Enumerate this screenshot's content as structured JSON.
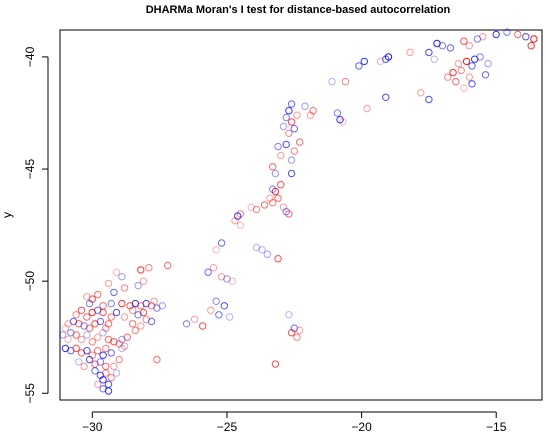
{
  "chart_data": {
    "type": "scatter",
    "title": "DHARMa Moran's I test for distance-based autocorrelation",
    "xlabel": "",
    "ylabel": "y",
    "xlim": [
      -31.2,
      -13.3
    ],
    "ylim": [
      -55.3,
      -38.8
    ],
    "x_ticks": [
      -30,
      -25,
      -20,
      -15
    ],
    "x_tick_labels": [
      "−30",
      "−25",
      "−20",
      "−15"
    ],
    "y_ticks": [
      -55,
      -50,
      -45,
      -40
    ],
    "y_tick_labels": [
      "−55",
      "−50",
      "−45",
      "−40"
    ],
    "grid": false,
    "legend": "none",
    "point_shape": "open circle",
    "colors": {
      "red": "#ff0000",
      "blue": "#0000ff",
      "axis": "#000000",
      "background": "#ffffff"
    },
    "points": [
      {
        "x": -13.6,
        "y": -39.2,
        "c": "red",
        "a": 0.9
      },
      {
        "x": -13.9,
        "y": -39.1,
        "c": "blue",
        "a": 0.7
      },
      {
        "x": -14.2,
        "y": -39.0,
        "c": "red",
        "a": 0.6
      },
      {
        "x": -13.7,
        "y": -39.5,
        "c": "red",
        "a": 0.8
      },
      {
        "x": -14.6,
        "y": -38.9,
        "c": "blue",
        "a": 0.5
      },
      {
        "x": -15.0,
        "y": -39.0,
        "c": "blue",
        "a": 0.8
      },
      {
        "x": -15.5,
        "y": -39.1,
        "c": "red",
        "a": 0.4
      },
      {
        "x": -15.7,
        "y": -39.2,
        "c": "blue",
        "a": 0.5
      },
      {
        "x": -16.2,
        "y": -39.3,
        "c": "red",
        "a": 0.7
      },
      {
        "x": -16.0,
        "y": -39.5,
        "c": "red",
        "a": 0.4
      },
      {
        "x": -15.8,
        "y": -40.1,
        "c": "blue",
        "a": 0.8
      },
      {
        "x": -16.1,
        "y": -40.2,
        "c": "red",
        "a": 0.9
      },
      {
        "x": -15.9,
        "y": -40.4,
        "c": "blue",
        "a": 0.6
      },
      {
        "x": -16.3,
        "y": -40.6,
        "c": "red",
        "a": 0.5
      },
      {
        "x": -16.0,
        "y": -40.9,
        "c": "red",
        "a": 0.4
      },
      {
        "x": -15.9,
        "y": -41.2,
        "c": "blue",
        "a": 0.7
      },
      {
        "x": -16.2,
        "y": -41.4,
        "c": "red",
        "a": 0.3
      },
      {
        "x": -16.6,
        "y": -40.7,
        "c": "red",
        "a": 0.8
      },
      {
        "x": -16.8,
        "y": -40.9,
        "c": "red",
        "a": 0.5
      },
      {
        "x": -16.5,
        "y": -41.1,
        "c": "red",
        "a": 0.6
      },
      {
        "x": -16.4,
        "y": -40.3,
        "c": "red",
        "a": 0.4
      },
      {
        "x": -15.6,
        "y": -40.0,
        "c": "blue",
        "a": 0.5
      },
      {
        "x": -15.3,
        "y": -40.3,
        "c": "blue",
        "a": 0.4
      },
      {
        "x": -15.4,
        "y": -40.8,
        "c": "blue",
        "a": 0.6
      },
      {
        "x": -16.7,
        "y": -39.6,
        "c": "blue",
        "a": 0.6
      },
      {
        "x": -17.0,
        "y": -39.5,
        "c": "blue",
        "a": 0.5
      },
      {
        "x": -17.2,
        "y": -39.4,
        "c": "blue",
        "a": 0.9
      },
      {
        "x": -17.5,
        "y": -39.8,
        "c": "blue",
        "a": 0.7
      },
      {
        "x": -17.3,
        "y": -40.1,
        "c": "blue",
        "a": 0.3
      },
      {
        "x": -18.2,
        "y": -39.8,
        "c": "red",
        "a": 0.4
      },
      {
        "x": -19.0,
        "y": -40.0,
        "c": "blue",
        "a": 0.9
      },
      {
        "x": -19.1,
        "y": -40.1,
        "c": "blue",
        "a": 0.7
      },
      {
        "x": -19.3,
        "y": -40.2,
        "c": "red",
        "a": 0.3
      },
      {
        "x": -19.9,
        "y": -40.2,
        "c": "blue",
        "a": 0.8
      },
      {
        "x": -20.1,
        "y": -40.4,
        "c": "blue",
        "a": 0.6
      },
      {
        "x": -20.6,
        "y": -41.1,
        "c": "red",
        "a": 0.5
      },
      {
        "x": -21.1,
        "y": -41.1,
        "c": "blue",
        "a": 0.3
      },
      {
        "x": -19.8,
        "y": -42.3,
        "c": "red",
        "a": 0.4
      },
      {
        "x": -19.1,
        "y": -41.8,
        "c": "blue",
        "a": 0.7
      },
      {
        "x": -17.8,
        "y": -41.6,
        "c": "red",
        "a": 0.4
      },
      {
        "x": -17.5,
        "y": -41.9,
        "c": "blue",
        "a": 0.7
      },
      {
        "x": -20.8,
        "y": -42.8,
        "c": "blue",
        "a": 0.8
      },
      {
        "x": -20.9,
        "y": -42.5,
        "c": "blue",
        "a": 0.5
      },
      {
        "x": -20.7,
        "y": -42.9,
        "c": "red",
        "a": 0.3
      },
      {
        "x": -21.8,
        "y": -42.4,
        "c": "red",
        "a": 0.6
      },
      {
        "x": -21.9,
        "y": -42.6,
        "c": "red",
        "a": 0.4
      },
      {
        "x": -22.1,
        "y": -42.2,
        "c": "blue",
        "a": 0.4
      },
      {
        "x": -22.6,
        "y": -42.1,
        "c": "blue",
        "a": 0.6
      },
      {
        "x": -22.7,
        "y": -42.4,
        "c": "blue",
        "a": 0.8
      },
      {
        "x": -22.8,
        "y": -42.7,
        "c": "blue",
        "a": 0.5
      },
      {
        "x": -22.6,
        "y": -42.9,
        "c": "red",
        "a": 0.7
      },
      {
        "x": -22.5,
        "y": -43.2,
        "c": "blue",
        "a": 0.6
      },
      {
        "x": -22.7,
        "y": -43.4,
        "c": "red",
        "a": 0.5
      },
      {
        "x": -22.9,
        "y": -43.1,
        "c": "blue",
        "a": 0.4
      },
      {
        "x": -22.4,
        "y": -42.6,
        "c": "red",
        "a": 0.4
      },
      {
        "x": -22.3,
        "y": -43.8,
        "c": "red",
        "a": 0.6
      },
      {
        "x": -22.8,
        "y": -43.9,
        "c": "blue",
        "a": 0.7
      },
      {
        "x": -22.5,
        "y": -44.2,
        "c": "red",
        "a": 0.5
      },
      {
        "x": -22.6,
        "y": -44.6,
        "c": "blue",
        "a": 0.4
      },
      {
        "x": -23.0,
        "y": -44.4,
        "c": "red",
        "a": 0.4
      },
      {
        "x": -23.1,
        "y": -44.0,
        "c": "blue",
        "a": 0.5
      },
      {
        "x": -23.3,
        "y": -44.9,
        "c": "red",
        "a": 0.6
      },
      {
        "x": -23.2,
        "y": -45.2,
        "c": "blue",
        "a": 0.4
      },
      {
        "x": -22.6,
        "y": -45.2,
        "c": "blue",
        "a": 0.7
      },
      {
        "x": -23.0,
        "y": -45.7,
        "c": "red",
        "a": 0.7
      },
      {
        "x": -23.2,
        "y": -46.0,
        "c": "red",
        "a": 0.8
      },
      {
        "x": -23.3,
        "y": -45.9,
        "c": "blue",
        "a": 0.5
      },
      {
        "x": -23.1,
        "y": -46.3,
        "c": "red",
        "a": 0.6
      },
      {
        "x": -23.3,
        "y": -46.5,
        "c": "red",
        "a": 0.5
      },
      {
        "x": -23.6,
        "y": -46.6,
        "c": "red",
        "a": 0.6
      },
      {
        "x": -23.9,
        "y": -46.8,
        "c": "red",
        "a": 0.5
      },
      {
        "x": -23.4,
        "y": -46.3,
        "c": "red",
        "a": 0.4
      },
      {
        "x": -22.9,
        "y": -46.7,
        "c": "red",
        "a": 0.4
      },
      {
        "x": -22.8,
        "y": -46.9,
        "c": "blue",
        "a": 0.5
      },
      {
        "x": -22.7,
        "y": -47.0,
        "c": "red",
        "a": 0.6
      },
      {
        "x": -24.5,
        "y": -47.0,
        "c": "red",
        "a": 0.5
      },
      {
        "x": -24.6,
        "y": -47.1,
        "c": "blue",
        "a": 0.8
      },
      {
        "x": -24.7,
        "y": -47.3,
        "c": "red",
        "a": 0.4
      },
      {
        "x": -24.5,
        "y": -47.5,
        "c": "red",
        "a": 0.3
      },
      {
        "x": -24.1,
        "y": -46.7,
        "c": "red",
        "a": 0.3
      },
      {
        "x": -25.2,
        "y": -48.3,
        "c": "blue",
        "a": 0.6
      },
      {
        "x": -25.4,
        "y": -48.6,
        "c": "red",
        "a": 0.3
      },
      {
        "x": -23.9,
        "y": -48.5,
        "c": "blue",
        "a": 0.3
      },
      {
        "x": -23.7,
        "y": -48.6,
        "c": "blue",
        "a": 0.3
      },
      {
        "x": -23.5,
        "y": -48.8,
        "c": "blue",
        "a": 0.4
      },
      {
        "x": -23.1,
        "y": -49.0,
        "c": "red",
        "a": 0.7
      },
      {
        "x": -25.5,
        "y": -49.4,
        "c": "red",
        "a": 0.4
      },
      {
        "x": -25.7,
        "y": -49.6,
        "c": "blue",
        "a": 0.6
      },
      {
        "x": -25.2,
        "y": -49.8,
        "c": "red",
        "a": 0.4
      },
      {
        "x": -24.8,
        "y": -50.0,
        "c": "red",
        "a": 0.3
      },
      {
        "x": -25.0,
        "y": -49.9,
        "c": "blue",
        "a": 0.4
      },
      {
        "x": -25.4,
        "y": -50.9,
        "c": "blue",
        "a": 0.5
      },
      {
        "x": -25.1,
        "y": -51.1,
        "c": "blue",
        "a": 0.7
      },
      {
        "x": -25.6,
        "y": -51.3,
        "c": "red",
        "a": 0.4
      },
      {
        "x": -24.9,
        "y": -51.6,
        "c": "blue",
        "a": 0.3
      },
      {
        "x": -25.3,
        "y": -51.5,
        "c": "blue",
        "a": 0.6
      },
      {
        "x": -25.9,
        "y": -52.0,
        "c": "red",
        "a": 0.7
      },
      {
        "x": -26.2,
        "y": -51.7,
        "c": "red",
        "a": 0.4
      },
      {
        "x": -26.5,
        "y": -51.9,
        "c": "blue",
        "a": 0.5
      },
      {
        "x": -22.5,
        "y": -52.1,
        "c": "blue",
        "a": 0.6
      },
      {
        "x": -22.6,
        "y": -52.3,
        "c": "red",
        "a": 0.7
      },
      {
        "x": -22.4,
        "y": -52.5,
        "c": "red",
        "a": 0.5
      },
      {
        "x": -22.3,
        "y": -52.2,
        "c": "red",
        "a": 0.4
      },
      {
        "x": -22.7,
        "y": -51.5,
        "c": "blue",
        "a": 0.3
      },
      {
        "x": -23.2,
        "y": -53.7,
        "c": "red",
        "a": 0.7
      },
      {
        "x": -27.6,
        "y": -53.5,
        "c": "red",
        "a": 0.6
      },
      {
        "x": -27.2,
        "y": -49.3,
        "c": "red",
        "a": 0.6
      },
      {
        "x": -27.9,
        "y": -49.4,
        "c": "red",
        "a": 0.5
      },
      {
        "x": -28.2,
        "y": -49.5,
        "c": "red",
        "a": 0.8
      },
      {
        "x": -28.1,
        "y": -50.0,
        "c": "red",
        "a": 0.4
      },
      {
        "x": -28.3,
        "y": -50.2,
        "c": "blue",
        "a": 0.4
      },
      {
        "x": -28.9,
        "y": -49.8,
        "c": "blue",
        "a": 0.4
      },
      {
        "x": -29.1,
        "y": -49.6,
        "c": "red",
        "a": 0.3
      },
      {
        "x": -28.8,
        "y": -50.3,
        "c": "red",
        "a": 0.5
      },
      {
        "x": -29.2,
        "y": -50.5,
        "c": "blue",
        "a": 0.6
      },
      {
        "x": -29.4,
        "y": -50.1,
        "c": "red",
        "a": 0.4
      },
      {
        "x": -29.8,
        "y": -50.6,
        "c": "red",
        "a": 0.6
      },
      {
        "x": -30.0,
        "y": -50.8,
        "c": "red",
        "a": 0.7
      },
      {
        "x": -30.1,
        "y": -51.0,
        "c": "blue",
        "a": 0.5
      },
      {
        "x": -30.2,
        "y": -50.7,
        "c": "red",
        "a": 0.4
      },
      {
        "x": -29.6,
        "y": -51.1,
        "c": "red",
        "a": 0.6
      },
      {
        "x": -29.3,
        "y": -51.0,
        "c": "blue",
        "a": 0.5
      },
      {
        "x": -28.9,
        "y": -51.0,
        "c": "red",
        "a": 0.8
      },
      {
        "x": -28.6,
        "y": -51.1,
        "c": "red",
        "a": 0.7
      },
      {
        "x": -28.4,
        "y": -51.0,
        "c": "blue",
        "a": 0.8
      },
      {
        "x": -28.2,
        "y": -51.1,
        "c": "red",
        "a": 0.6
      },
      {
        "x": -28.0,
        "y": -51.0,
        "c": "blue",
        "a": 0.7
      },
      {
        "x": -27.8,
        "y": -51.1,
        "c": "red",
        "a": 0.6
      },
      {
        "x": -27.6,
        "y": -51.2,
        "c": "blue",
        "a": 0.5
      },
      {
        "x": -27.4,
        "y": -51.1,
        "c": "blue",
        "a": 0.4
      },
      {
        "x": -27.7,
        "y": -50.9,
        "c": "red",
        "a": 0.4
      },
      {
        "x": -28.1,
        "y": -51.4,
        "c": "red",
        "a": 0.7
      },
      {
        "x": -28.3,
        "y": -51.5,
        "c": "blue",
        "a": 0.6
      },
      {
        "x": -28.5,
        "y": -51.3,
        "c": "red",
        "a": 0.5
      },
      {
        "x": -28.8,
        "y": -51.6,
        "c": "red",
        "a": 0.4
      },
      {
        "x": -28.0,
        "y": -51.7,
        "c": "red",
        "a": 0.5
      },
      {
        "x": -27.8,
        "y": -51.8,
        "c": "blue",
        "a": 0.6
      },
      {
        "x": -28.2,
        "y": -52.0,
        "c": "red",
        "a": 0.4
      },
      {
        "x": -28.5,
        "y": -51.9,
        "c": "red",
        "a": 0.6
      },
      {
        "x": -28.4,
        "y": -52.2,
        "c": "red",
        "a": 0.5
      },
      {
        "x": -28.7,
        "y": -52.5,
        "c": "red",
        "a": 0.6
      },
      {
        "x": -28.9,
        "y": -52.6,
        "c": "blue",
        "a": 0.4
      },
      {
        "x": -29.0,
        "y": -52.8,
        "c": "red",
        "a": 0.5
      },
      {
        "x": -29.2,
        "y": -52.7,
        "c": "red",
        "a": 0.7
      },
      {
        "x": -28.9,
        "y": -53.0,
        "c": "blue",
        "a": 0.3
      },
      {
        "x": -29.1,
        "y": -51.4,
        "c": "blue",
        "a": 0.7
      },
      {
        "x": -29.3,
        "y": -51.6,
        "c": "red",
        "a": 0.6
      },
      {
        "x": -29.6,
        "y": -51.4,
        "c": "red",
        "a": 0.7
      },
      {
        "x": -29.8,
        "y": -51.3,
        "c": "blue",
        "a": 0.6
      },
      {
        "x": -30.0,
        "y": -51.4,
        "c": "red",
        "a": 0.8
      },
      {
        "x": -30.2,
        "y": -51.6,
        "c": "red",
        "a": 0.6
      },
      {
        "x": -30.4,
        "y": -51.3,
        "c": "red",
        "a": 0.7
      },
      {
        "x": -30.6,
        "y": -51.5,
        "c": "red",
        "a": 0.5
      },
      {
        "x": -30.7,
        "y": -51.8,
        "c": "blue",
        "a": 0.6
      },
      {
        "x": -30.5,
        "y": -51.9,
        "c": "red",
        "a": 0.7
      },
      {
        "x": -30.3,
        "y": -52.0,
        "c": "blue",
        "a": 0.5
      },
      {
        "x": -30.1,
        "y": -52.1,
        "c": "red",
        "a": 0.6
      },
      {
        "x": -29.9,
        "y": -51.9,
        "c": "red",
        "a": 0.7
      },
      {
        "x": -29.7,
        "y": -51.8,
        "c": "blue",
        "a": 0.6
      },
      {
        "x": -29.5,
        "y": -52.1,
        "c": "red",
        "a": 0.5
      },
      {
        "x": -29.4,
        "y": -51.9,
        "c": "red",
        "a": 0.6
      },
      {
        "x": -30.9,
        "y": -51.9,
        "c": "red",
        "a": 0.4
      },
      {
        "x": -31.0,
        "y": -52.1,
        "c": "red",
        "a": 0.3
      },
      {
        "x": -30.8,
        "y": -52.3,
        "c": "blue",
        "a": 0.5
      },
      {
        "x": -30.6,
        "y": -52.4,
        "c": "red",
        "a": 0.6
      },
      {
        "x": -30.4,
        "y": -52.6,
        "c": "red",
        "a": 0.4
      },
      {
        "x": -30.2,
        "y": -52.4,
        "c": "blue",
        "a": 0.3
      },
      {
        "x": -30.0,
        "y": -52.7,
        "c": "red",
        "a": 0.5
      },
      {
        "x": -29.8,
        "y": -52.5,
        "c": "red",
        "a": 0.4
      },
      {
        "x": -29.6,
        "y": -52.3,
        "c": "blue",
        "a": 0.3
      },
      {
        "x": -29.4,
        "y": -52.6,
        "c": "red",
        "a": 0.6
      },
      {
        "x": -31.0,
        "y": -53.0,
        "c": "blue",
        "a": 0.8
      },
      {
        "x": -30.8,
        "y": -53.1,
        "c": "blue",
        "a": 0.6
      },
      {
        "x": -30.6,
        "y": -53.0,
        "c": "red",
        "a": 0.7
      },
      {
        "x": -30.4,
        "y": -53.2,
        "c": "red",
        "a": 0.6
      },
      {
        "x": -30.2,
        "y": -53.1,
        "c": "blue",
        "a": 0.7
      },
      {
        "x": -30.0,
        "y": -53.3,
        "c": "red",
        "a": 0.5
      },
      {
        "x": -29.8,
        "y": -53.1,
        "c": "red",
        "a": 0.6
      },
      {
        "x": -29.6,
        "y": -53.3,
        "c": "blue",
        "a": 0.8
      },
      {
        "x": -29.5,
        "y": -53.0,
        "c": "red",
        "a": 0.5
      },
      {
        "x": -29.3,
        "y": -53.2,
        "c": "blue",
        "a": 0.6
      },
      {
        "x": -30.1,
        "y": -53.5,
        "c": "blue",
        "a": 0.7
      },
      {
        "x": -29.9,
        "y": -53.7,
        "c": "red",
        "a": 0.6
      },
      {
        "x": -29.7,
        "y": -53.6,
        "c": "blue",
        "a": 0.5
      },
      {
        "x": -29.5,
        "y": -53.8,
        "c": "red",
        "a": 0.6
      },
      {
        "x": -30.3,
        "y": -53.8,
        "c": "red",
        "a": 0.4
      },
      {
        "x": -30.5,
        "y": -53.6,
        "c": "blue",
        "a": 0.3
      },
      {
        "x": -29.9,
        "y": -54.0,
        "c": "blue",
        "a": 0.6
      },
      {
        "x": -29.7,
        "y": -54.2,
        "c": "blue",
        "a": 0.7
      },
      {
        "x": -29.5,
        "y": -54.1,
        "c": "red",
        "a": 0.5
      },
      {
        "x": -29.6,
        "y": -54.4,
        "c": "blue",
        "a": 0.8
      },
      {
        "x": -29.4,
        "y": -54.6,
        "c": "blue",
        "a": 0.7
      },
      {
        "x": -29.6,
        "y": -54.8,
        "c": "blue",
        "a": 0.6
      },
      {
        "x": -29.4,
        "y": -54.9,
        "c": "blue",
        "a": 0.8
      },
      {
        "x": -29.8,
        "y": -54.6,
        "c": "red",
        "a": 0.4
      },
      {
        "x": -29.3,
        "y": -54.3,
        "c": "red",
        "a": 0.5
      },
      {
        "x": -29.2,
        "y": -53.8,
        "c": "red",
        "a": 0.4
      },
      {
        "x": -29.1,
        "y": -54.1,
        "c": "blue",
        "a": 0.3
      },
      {
        "x": -29.0,
        "y": -53.5,
        "c": "red",
        "a": 0.5
      },
      {
        "x": -28.8,
        "y": -52.9,
        "c": "red",
        "a": 0.4
      },
      {
        "x": -30.9,
        "y": -52.6,
        "c": "red",
        "a": 0.3
      },
      {
        "x": -31.1,
        "y": -52.4,
        "c": "blue",
        "a": 0.4
      }
    ]
  }
}
